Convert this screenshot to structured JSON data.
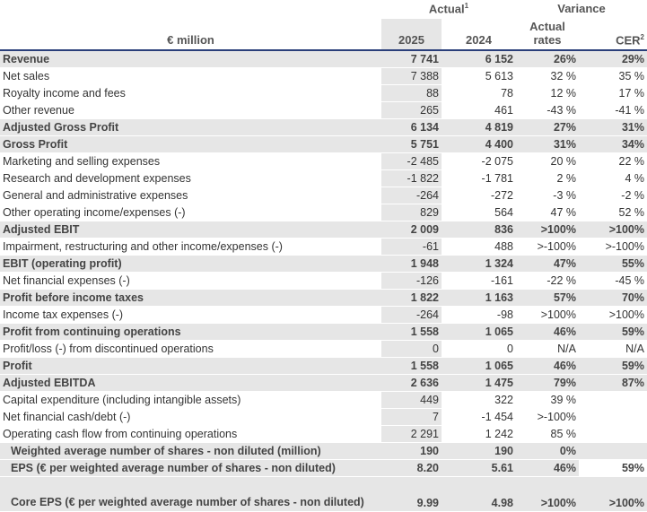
{
  "header": {
    "unit": "€ million",
    "actual": "Actual",
    "actual_sup": "1",
    "variance": "Variance",
    "y2025": "2025",
    "y2024": "2024",
    "actual_rates": "Actual rates",
    "cer": "CER",
    "cer_sup": "2"
  },
  "rows": [
    {
      "label": "Revenue",
      "v2025": "7 741",
      "v2024": "6 152",
      "actual": "26%",
      "cer": "29%",
      "bold": true
    },
    {
      "label": "Net sales",
      "v2025": "7 388",
      "v2024": "5 613",
      "actual": "32 %",
      "cer": "35 %"
    },
    {
      "label": "Royalty income and fees",
      "v2025": "88",
      "v2024": "78",
      "actual": "12 %",
      "cer": "17 %"
    },
    {
      "label": "Other revenue",
      "v2025": "265",
      "v2024": "461",
      "actual": "-43 %",
      "cer": "-41 %"
    },
    {
      "label": "Adjusted Gross Profit",
      "v2025": "6 134",
      "v2024": "4 819",
      "actual": "27%",
      "cer": "31%",
      "bold": true
    },
    {
      "label": "Gross Profit",
      "v2025": "5 751",
      "v2024": "4 400",
      "actual": "31%",
      "cer": "34%",
      "bold": true
    },
    {
      "label": "Marketing and selling expenses",
      "v2025": "-2 485",
      "v2024": "-2 075",
      "actual": "20 %",
      "cer": "22 %"
    },
    {
      "label": "Research and development expenses",
      "v2025": "-1 822",
      "v2024": "-1 781",
      "actual": "2 %",
      "cer": "4 %"
    },
    {
      "label": "General and administrative expenses",
      "v2025": "-264",
      "v2024": "-272",
      "actual": "-3 %",
      "cer": "-2 %"
    },
    {
      "label": "Other operating income/expenses (-)",
      "v2025": "829",
      "v2024": "564",
      "actual": "47 %",
      "cer": "52 %"
    },
    {
      "label": "Adjusted EBIT",
      "v2025": "2 009",
      "v2024": "836",
      "actual": ">100%",
      "cer": ">100%",
      "bold": true
    },
    {
      "label": "Impairment, restructuring and other income/expenses (-)",
      "v2025": "-61",
      "v2024": "488",
      "actual": ">-100%",
      "cer": ">-100%"
    },
    {
      "label": "EBIT (operating profit)",
      "v2025": "1 948",
      "v2024": "1 324",
      "actual": "47%",
      "cer": "55%",
      "bold": true
    },
    {
      "label": "Net financial expenses (-)",
      "v2025": "-126",
      "v2024": "-161",
      "actual": "-22 %",
      "cer": "-45 %"
    },
    {
      "label": "Profit before income taxes",
      "v2025": "1 822",
      "v2024": "1 163",
      "actual": "57%",
      "cer": "70%",
      "bold": true
    },
    {
      "label": "Income tax expenses (-)",
      "v2025": "-264",
      "v2024": "-98",
      "actual": ">100%",
      "cer": ">100%"
    },
    {
      "label": "Profit from continuing operations",
      "v2025": "1 558",
      "v2024": "1 065",
      "actual": "46%",
      "cer": "59%",
      "bold": true
    },
    {
      "label": "Profit/loss (-) from discontinued operations",
      "v2025": "0",
      "v2024": "0",
      "actual": "N/A",
      "cer": "N/A"
    },
    {
      "label": "Profit",
      "v2025": "1 558",
      "v2024": "1 065",
      "actual": "46%",
      "cer": "59%",
      "bold": true
    },
    {
      "label": "Adjusted EBITDA",
      "v2025": "2 636",
      "v2024": "1 475",
      "actual": "79%",
      "cer": "87%",
      "bold": true
    },
    {
      "label": "Capital expenditure (including intangible assets)",
      "v2025": "449",
      "v2024": "322",
      "actual": "39 %",
      "cer": ""
    },
    {
      "label": "Net financial cash/debt (-)",
      "v2025": "7",
      "v2024": "-1 454",
      "actual": ">-100%",
      "cer": ""
    },
    {
      "label": "Operating cash flow from continuing operations",
      "v2025": "2 291",
      "v2024": "1 242",
      "actual": "85 %",
      "cer": ""
    },
    {
      "label": "Weighted average number of shares - non diluted (million)",
      "v2025": "190",
      "v2024": "190",
      "actual": "0%",
      "cer": "",
      "bold": true,
      "indent": true
    },
    {
      "label": "EPS (€ per weighted average number of shares - non diluted)",
      "v2025": "8.20",
      "v2024": "5.61",
      "actual": "46%",
      "cer": "59%",
      "bold": true,
      "indent": true,
      "cer_white": true
    },
    {
      "label": "Core EPS (€ per weighted average number of shares - non diluted)",
      "v2025": "9.99",
      "v2024": "4.98",
      "actual": ">100%",
      "cer": ">100%",
      "bold": true,
      "indent": true,
      "wrap": true
    }
  ]
}
